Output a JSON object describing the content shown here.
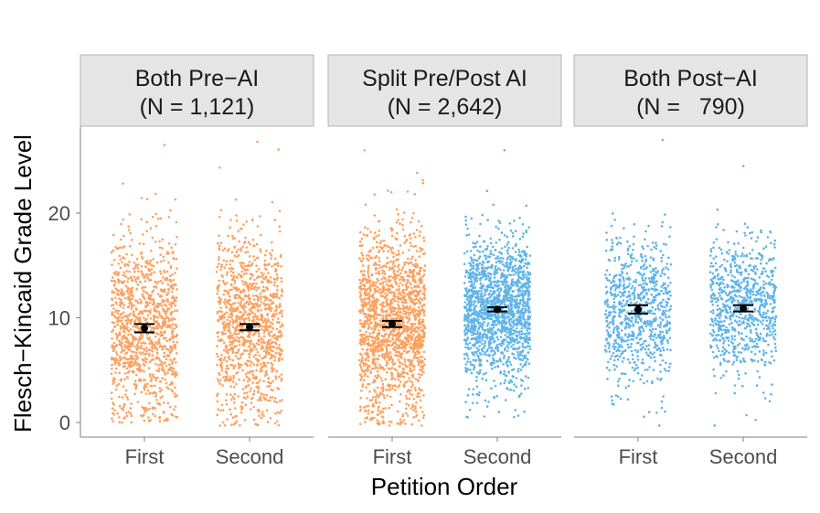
{
  "chart_data": {
    "type": "scatter",
    "subtype": "jittered strip plot with mean and error bars, faceted",
    "xlabel": "Petition Order",
    "ylabel": "Flesch−Kincaid Grade Level",
    "ylim": [
      -1,
      28
    ],
    "yticks": [
      0,
      10,
      20
    ],
    "categories": [
      "First",
      "Second"
    ],
    "colors": {
      "pre_ai": "#FDA15F",
      "post_ai": "#60B4E8",
      "mean": "#000000"
    },
    "grid": false,
    "legend": "none",
    "panels": [
      {
        "title_line1": "Both Pre−AI",
        "title_line2": "(N = 1,121)",
        "groups": [
          {
            "category": "First",
            "color_key": "pre_ai",
            "n_points": 1121,
            "mean": 9.0,
            "se_low": 8.6,
            "se_high": 9.4,
            "y_min": 0.0,
            "y_max": 26.5,
            "q1": 6.0,
            "q3": 12.0
          },
          {
            "category": "Second",
            "color_key": "pre_ai",
            "n_points": 1121,
            "mean": 9.1,
            "se_low": 8.8,
            "se_high": 9.4,
            "y_min": -0.3,
            "y_max": 26.8,
            "q1": 6.0,
            "q3": 12.0
          }
        ]
      },
      {
        "title_line1": "Split Pre/Post AI",
        "title_line2": "(N = 2,642)",
        "groups": [
          {
            "category": "First",
            "color_key": "pre_ai",
            "n_points": 2642,
            "mean": 9.4,
            "se_low": 9.1,
            "se_high": 9.7,
            "y_min": -0.3,
            "y_max": 26.0,
            "q1": 6.5,
            "q3": 12.5
          },
          {
            "category": "Second",
            "color_key": "post_ai",
            "n_points": 2642,
            "mean": 10.8,
            "se_low": 10.6,
            "se_high": 11.0,
            "y_min": 0.5,
            "y_max": 26.0,
            "q1": 8.5,
            "q3": 13.0
          }
        ]
      },
      {
        "title_line1": "Both Post−AI",
        "title_line2": "(N =   790)",
        "groups": [
          {
            "category": "First",
            "color_key": "post_ai",
            "n_points": 790,
            "mean": 10.8,
            "se_low": 10.4,
            "se_high": 11.2,
            "y_min": -0.3,
            "y_max": 27.0,
            "q1": 8.5,
            "q3": 13.0
          },
          {
            "category": "Second",
            "color_key": "post_ai",
            "n_points": 790,
            "mean": 10.9,
            "se_low": 10.6,
            "se_high": 11.2,
            "y_min": -0.3,
            "y_max": 24.5,
            "q1": 8.5,
            "q3": 13.0
          }
        ]
      }
    ]
  }
}
